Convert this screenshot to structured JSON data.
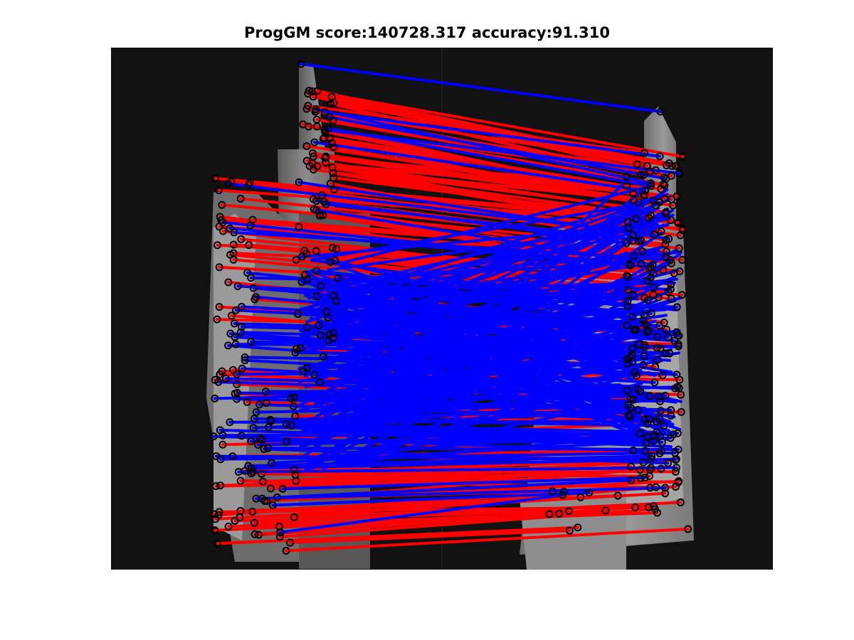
{
  "figure": {
    "title": "ProgGM score:140728.317 accuracy:91.310"
  },
  "colors": {
    "background": "#ffffff",
    "image_dark": "#111111",
    "correct_match": "#0000ff",
    "wrong_match": "#ff0000",
    "keypoint": "#000000"
  },
  "legend_semantics": {
    "correct_icon": "blue-line",
    "wrong_icon": "red-line"
  }
}
